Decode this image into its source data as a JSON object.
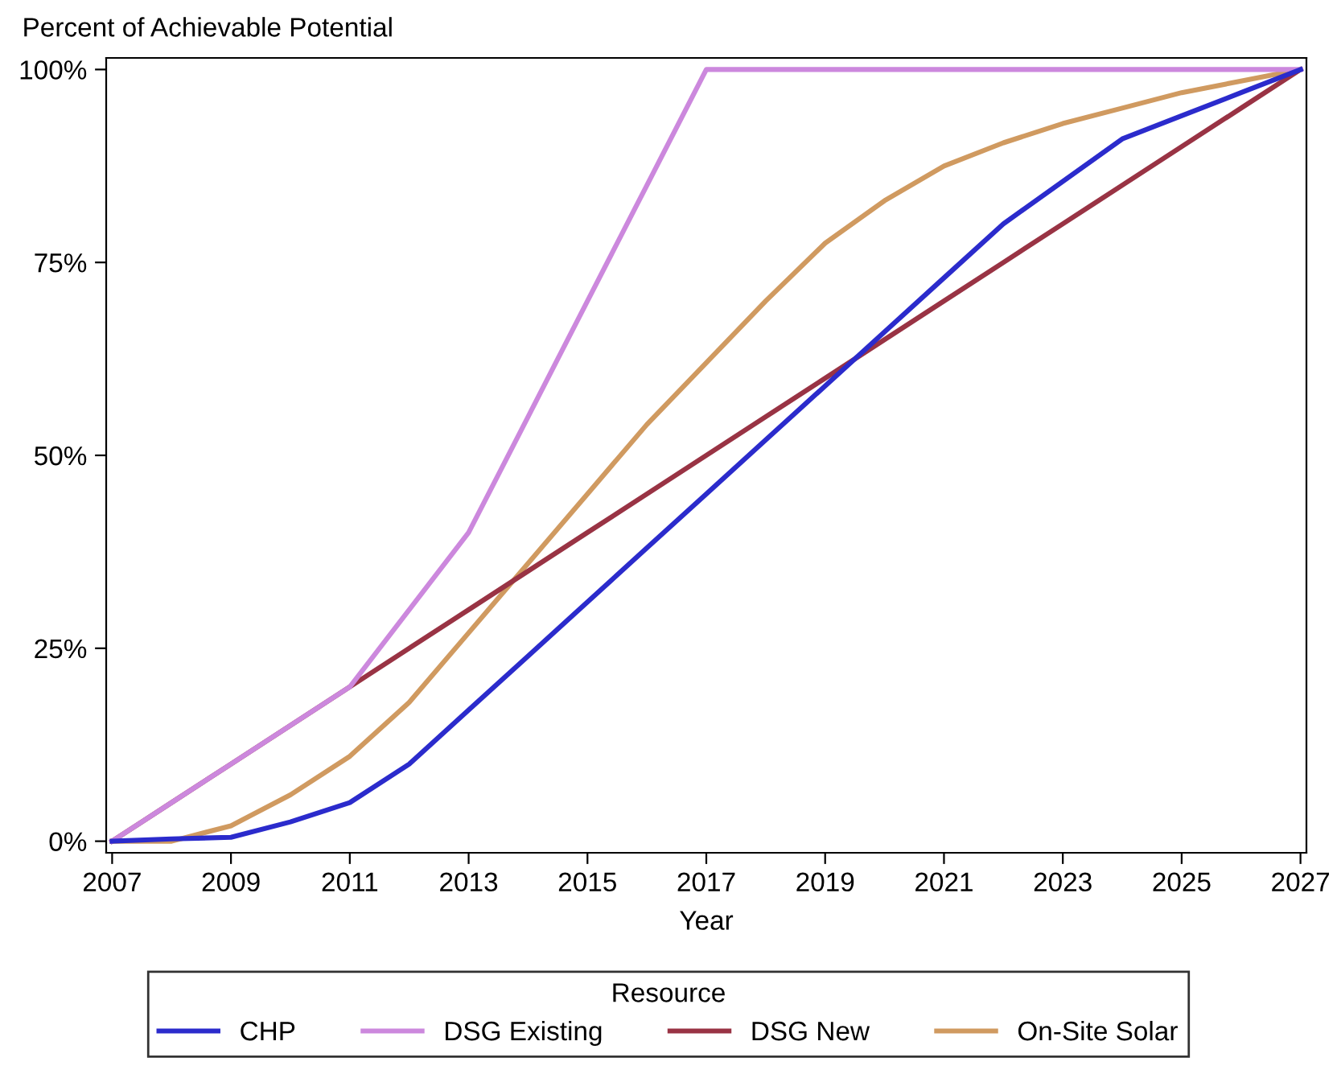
{
  "chart_data": {
    "type": "line",
    "ylabel": "Percent of Achievable Potential",
    "xlabel": "Year",
    "legend_title": "Resource",
    "legend": "bottom",
    "x": [
      2007,
      2008,
      2009,
      2010,
      2011,
      2012,
      2013,
      2014,
      2015,
      2016,
      2017,
      2018,
      2019,
      2020,
      2021,
      2022,
      2023,
      2024,
      2025,
      2026,
      2027
    ],
    "series": [
      {
        "name": "CHP",
        "color": "#2b2bcc",
        "values": [
          0,
          0.3,
          0.5,
          2.5,
          5,
          10,
          17,
          24,
          31,
          38,
          45,
          52,
          59,
          66,
          73,
          80,
          85.5,
          91,
          94,
          97,
          100
        ]
      },
      {
        "name": "DSG Existing",
        "color": "#cc88dd",
        "values": [
          0,
          5,
          10,
          15,
          20,
          30,
          40,
          55,
          70,
          85,
          100,
          100,
          100,
          100,
          100,
          100,
          100,
          100,
          100,
          100,
          100
        ]
      },
      {
        "name": "DSG New",
        "color": "#993344",
        "values": [
          0,
          5,
          10,
          15,
          20,
          25,
          30,
          35,
          40,
          45,
          50,
          55,
          60,
          65,
          70,
          75,
          80,
          85,
          90,
          95,
          100
        ]
      },
      {
        "name": "On-Site Solar",
        "color": "#d09a60",
        "values": [
          0,
          0,
          2,
          6,
          11,
          18,
          27,
          36,
          45,
          54,
          62,
          70,
          77.5,
          83,
          87.5,
          90.5,
          93,
          95,
          97,
          98.5,
          100
        ]
      }
    ],
    "xlim": [
      2006.9,
      2027.1
    ],
    "xticks": [
      2007,
      2009,
      2011,
      2013,
      2015,
      2017,
      2019,
      2021,
      2023,
      2025,
      2027
    ],
    "ylim": [
      -1.5,
      101.5
    ],
    "yticks": [
      {
        "value": 0,
        "label": "0%"
      },
      {
        "value": 25,
        "label": "25%"
      },
      {
        "value": 50,
        "label": "50%"
      },
      {
        "value": 75,
        "label": "75%"
      },
      {
        "value": 100,
        "label": "100%"
      }
    ],
    "grid": false,
    "marker": "none",
    "line_style": "solid"
  }
}
